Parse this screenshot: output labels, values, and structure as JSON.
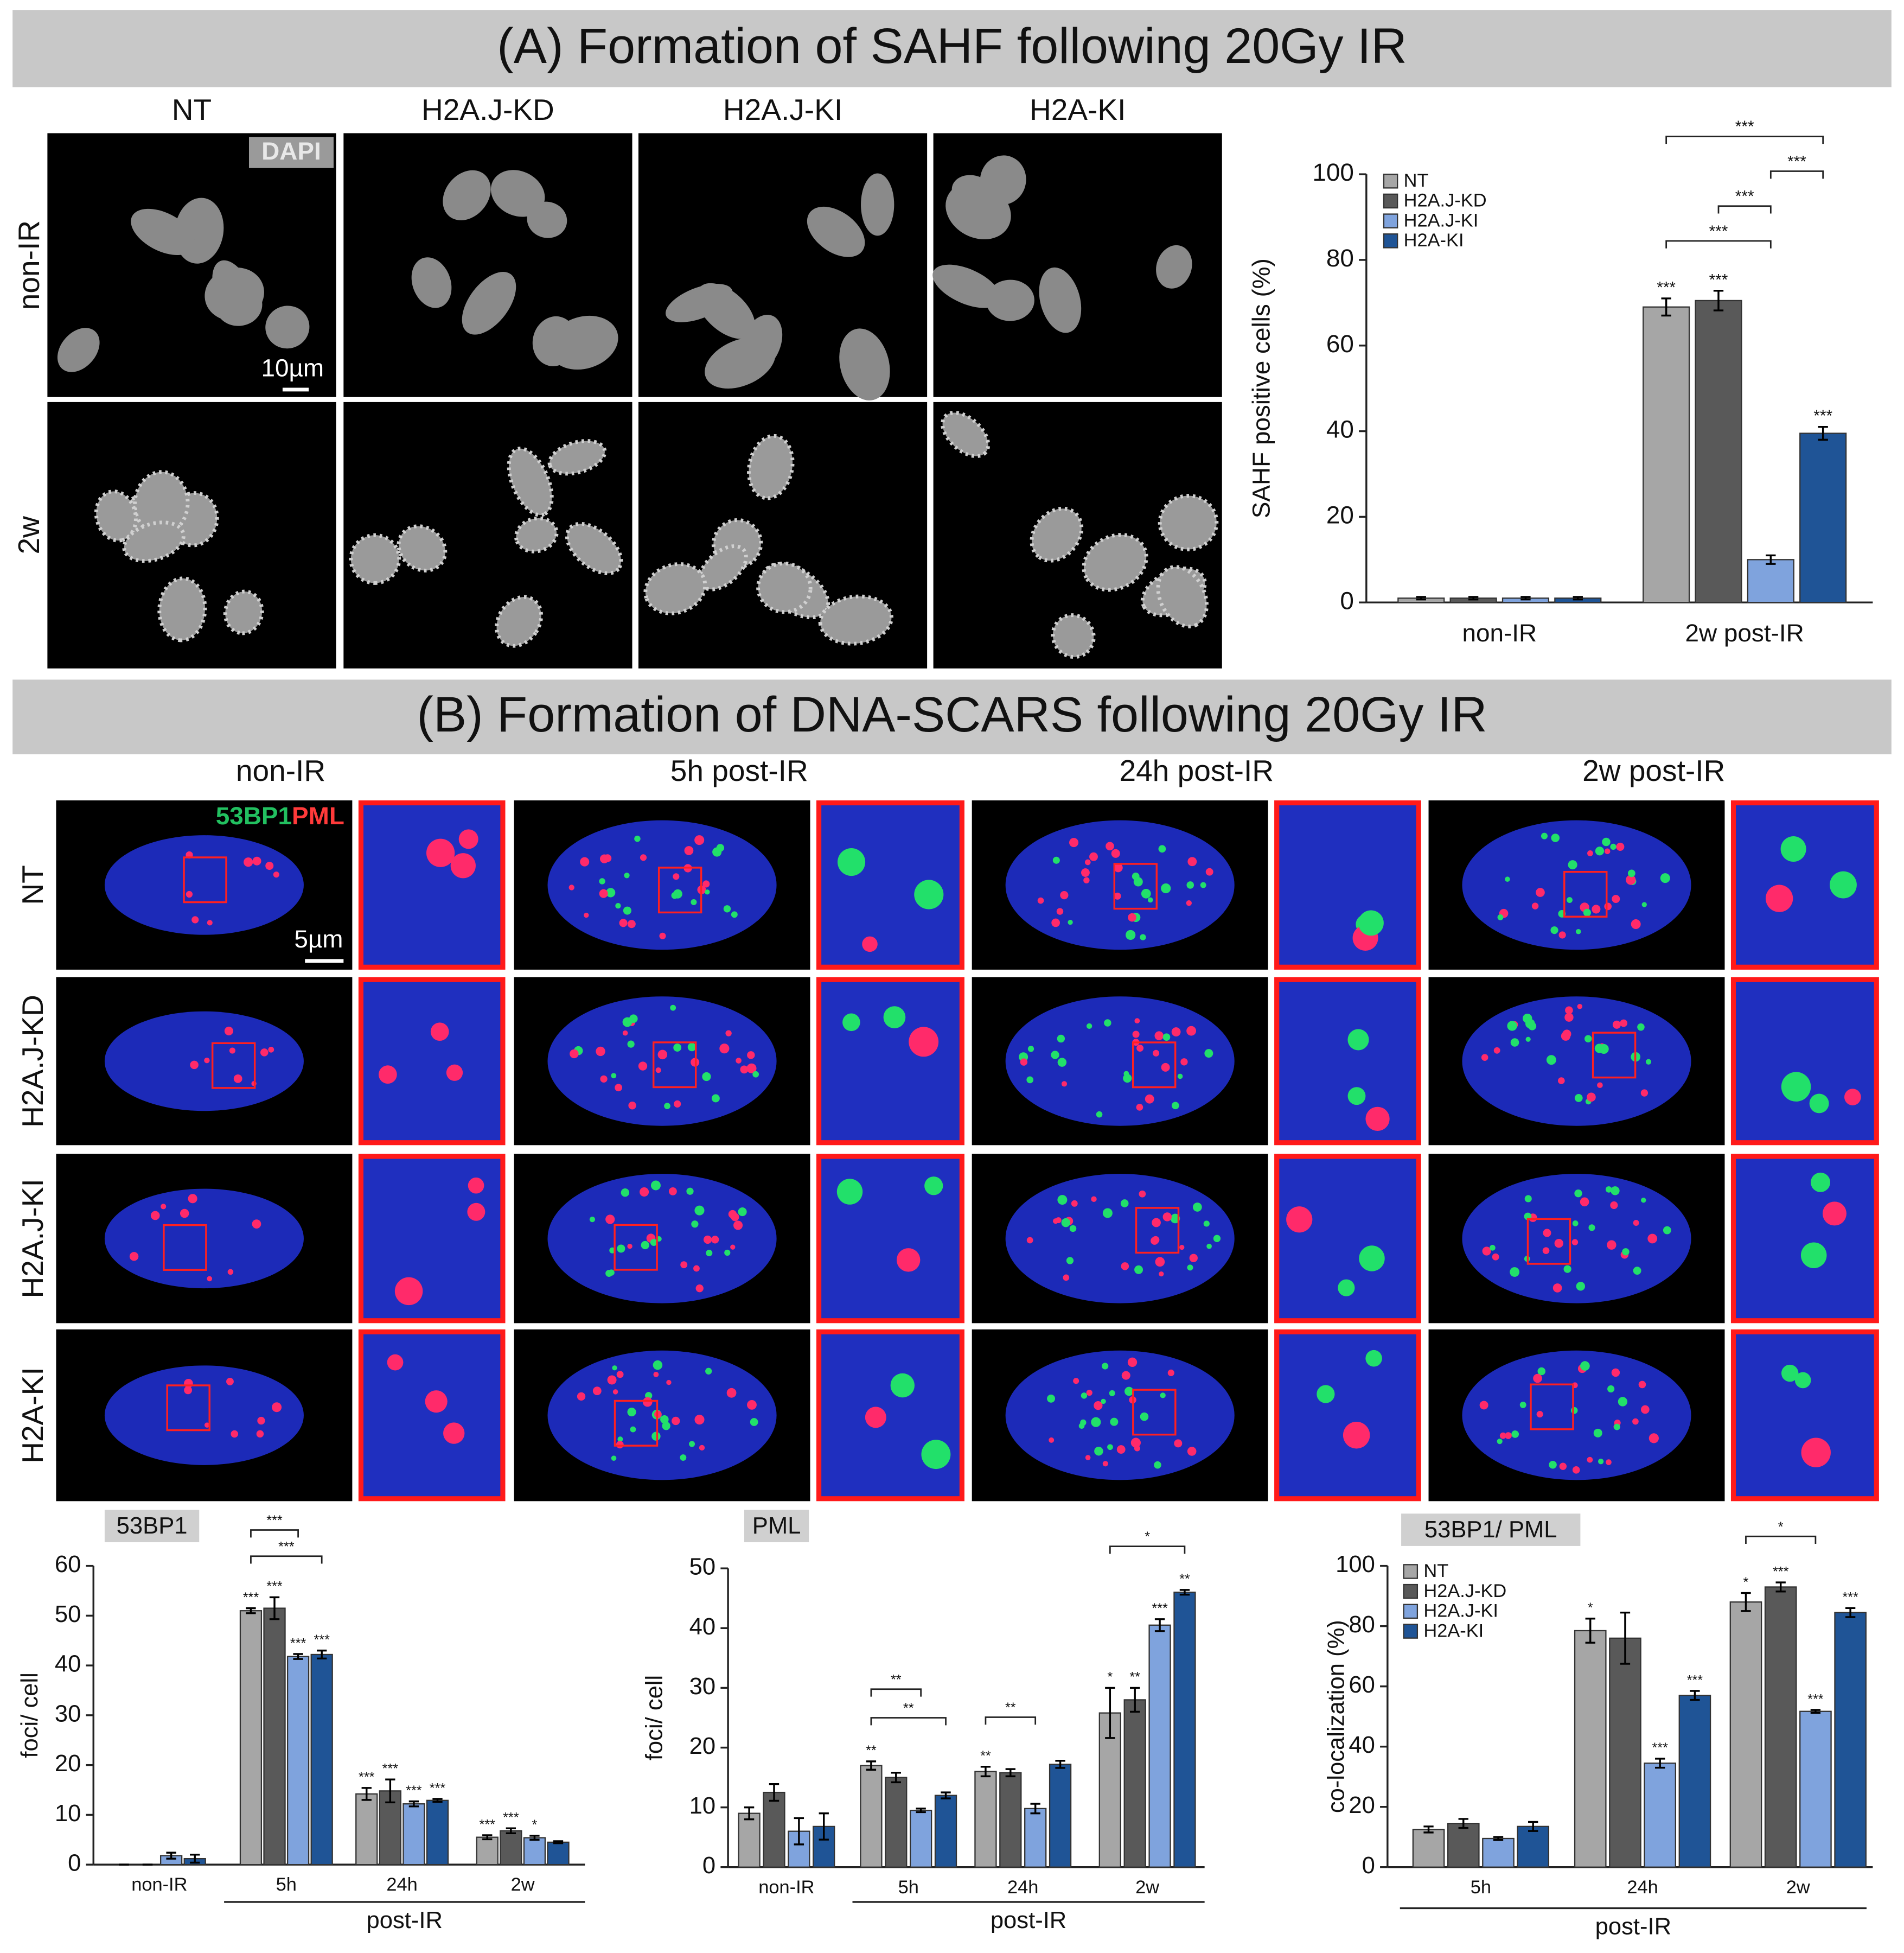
{
  "panel_a": {
    "title": "(A) Formation of SAHF following 20Gy IR",
    "columns": [
      "NT",
      "H2A.J-KD",
      "H2A.J-KI",
      "H2A-KI"
    ],
    "rows": [
      "non-IR",
      "2w"
    ],
    "stain": "DAPI",
    "scale_bar": "10µm"
  },
  "panel_b": {
    "title": "(B) Formation of DNA-SCARS following 20Gy IR",
    "columns": [
      "non-IR",
      "5h post-IR",
      "24h post-IR",
      "2w post-IR"
    ],
    "rows": [
      "NT",
      "H2A.J-KD",
      "H2A.J-KI",
      "H2A-KI"
    ],
    "stain_green": "53BP1",
    "stain_red": "PML",
    "scale_bar": "5µm"
  },
  "chart_data": [
    {
      "type": "bar",
      "y_label": "SAHF positive cells (%)",
      "categories": [
        "non-IR",
        "2w post-IR"
      ],
      "ylim": [
        0,
        100
      ],
      "yticks": [
        0,
        20,
        40,
        60,
        80,
        100
      ],
      "legend": "upper left",
      "series": [
        {
          "name": "NT",
          "color": "#a6a6a6",
          "values": [
            1,
            69
          ],
          "errors": [
            0.3,
            2
          ],
          "significance": [
            null,
            "***"
          ]
        },
        {
          "name": "H2A.J-KD",
          "color": "#595959",
          "values": [
            1,
            70.5
          ],
          "errors": [
            0.3,
            2.3
          ],
          "significance": [
            null,
            "***"
          ]
        },
        {
          "name": "H2A.J-KI",
          "color": "#7fa3dd",
          "values": [
            1,
            10
          ],
          "errors": [
            0.3,
            1
          ],
          "significance": [
            null,
            null
          ]
        },
        {
          "name": "H2A-KI",
          "color": "#1f5496",
          "values": [
            1,
            39.5
          ],
          "errors": [
            0.3,
            1.5
          ],
          "significance": [
            null,
            "***"
          ]
        }
      ],
      "brackets": [
        {
          "category": 1,
          "from": 0,
          "to": 2,
          "label": "***"
        },
        {
          "category": 1,
          "from": 1,
          "to": 2,
          "label": "***"
        },
        {
          "category": 1,
          "from": 2,
          "to": 3,
          "label": "***"
        },
        {
          "category": 1,
          "from": 0,
          "to": 3,
          "label": "***"
        }
      ]
    },
    {
      "type": "bar",
      "title": "53BP1",
      "y_label": "foci/ cell",
      "categories": [
        "non-IR",
        "5h",
        "24h",
        "2w"
      ],
      "xgroup": {
        "label": "post-IR",
        "from": 1,
        "to": 3
      },
      "ylim": [
        0,
        60
      ],
      "yticks": [
        0,
        10,
        20,
        30,
        40,
        50,
        60
      ],
      "series": [
        {
          "color": "#a6a6a6",
          "values": [
            0,
            51,
            14.2,
            5.5
          ],
          "errors": [
            0,
            0.5,
            1.2,
            0.4
          ],
          "significance": [
            null,
            "***",
            "***",
            "***"
          ]
        },
        {
          "color": "#595959",
          "values": [
            0,
            51.5,
            14.8,
            6.8
          ],
          "errors": [
            0,
            2.2,
            2.3,
            0.5
          ],
          "significance": [
            null,
            "***",
            "***",
            "***"
          ]
        },
        {
          "color": "#7fa3dd",
          "values": [
            1.8,
            41.8,
            12.2,
            5.4
          ],
          "errors": [
            0.6,
            0.5,
            0.5,
            0.4
          ],
          "significance": [
            null,
            "***",
            "***",
            "*"
          ]
        },
        {
          "color": "#1f5496",
          "values": [
            1.2,
            42.2,
            12.9,
            4.5
          ],
          "errors": [
            0.8,
            0.8,
            0.3,
            0.2
          ],
          "significance": [
            null,
            "***",
            "***",
            null
          ]
        }
      ],
      "brackets": [
        {
          "category": 1,
          "from": 0,
          "to": 3,
          "label": "***"
        },
        {
          "category": 1,
          "from": 0,
          "to": 2,
          "label": "***"
        }
      ]
    },
    {
      "type": "bar",
      "title": "PML",
      "y_label": "foci/ cell",
      "categories": [
        "non-IR",
        "5h",
        "24h",
        "2w"
      ],
      "xgroup": {
        "label": "post-IR",
        "from": 1,
        "to": 3
      },
      "ylim": [
        0,
        50
      ],
      "yticks": [
        0,
        10,
        20,
        30,
        40,
        50
      ],
      "series": [
        {
          "color": "#a6a6a6",
          "values": [
            9,
            17,
            16,
            25.8
          ],
          "errors": [
            1,
            0.7,
            0.8,
            4.2
          ],
          "significance": [
            null,
            "**",
            "**",
            "*"
          ]
        },
        {
          "color": "#595959",
          "values": [
            12.5,
            15,
            15.8,
            28
          ],
          "errors": [
            1.4,
            0.8,
            0.6,
            2
          ],
          "significance": [
            null,
            null,
            null,
            "**"
          ]
        },
        {
          "color": "#7fa3dd",
          "values": [
            6,
            9.5,
            9.8,
            40.5
          ],
          "errors": [
            2.2,
            0.3,
            0.8,
            1
          ],
          "significance": [
            null,
            null,
            null,
            "***"
          ]
        },
        {
          "color": "#1f5496",
          "values": [
            6.8,
            12,
            17.2,
            46
          ],
          "errors": [
            2.2,
            0.5,
            0.6,
            0.4
          ],
          "significance": [
            null,
            null,
            null,
            "**"
          ]
        }
      ],
      "brackets": [
        {
          "category": 1,
          "from": 0,
          "to": 3,
          "label": "**"
        },
        {
          "category": 1,
          "from": 0,
          "to": 2,
          "label": "**"
        },
        {
          "category": 2,
          "from": 0,
          "to": 2,
          "label": "**"
        },
        {
          "category": 3,
          "from": 0,
          "to": 3,
          "label": "*"
        }
      ]
    },
    {
      "type": "bar",
      "title": "53BP1/ PML",
      "y_label": "co-localization (%)",
      "categories": [
        "5h",
        "24h",
        "2w"
      ],
      "xgroup": {
        "label": "post-IR",
        "from": 0,
        "to": 2
      },
      "ylim": [
        0,
        100
      ],
      "yticks": [
        0,
        20,
        40,
        60,
        80,
        100
      ],
      "legend": "upper left",
      "series": [
        {
          "name": "NT",
          "color": "#a6a6a6",
          "values": [
            12.5,
            78.5,
            88
          ],
          "errors": [
            1,
            4,
            3
          ],
          "significance": [
            null,
            "*",
            "*"
          ]
        },
        {
          "name": "H2A.J-KD",
          "color": "#595959",
          "values": [
            14.5,
            76,
            93
          ],
          "errors": [
            1.5,
            8.5,
            1.5
          ],
          "significance": [
            null,
            null,
            "***"
          ]
        },
        {
          "name": "H2A.J-KI",
          "color": "#7fa3dd",
          "values": [
            9.5,
            34.5,
            51.7
          ],
          "errors": [
            0.5,
            1.5,
            0.5
          ],
          "significance": [
            null,
            "***",
            "***"
          ]
        },
        {
          "name": "H2A-KI",
          "color": "#1f5496",
          "values": [
            13.5,
            57,
            84.5
          ],
          "errors": [
            1.5,
            1.5,
            1.5
          ],
          "significance": [
            null,
            "***",
            "***"
          ]
        }
      ],
      "brackets": [
        {
          "category": 2,
          "from": 0,
          "to": 2,
          "label": "*"
        }
      ]
    }
  ]
}
